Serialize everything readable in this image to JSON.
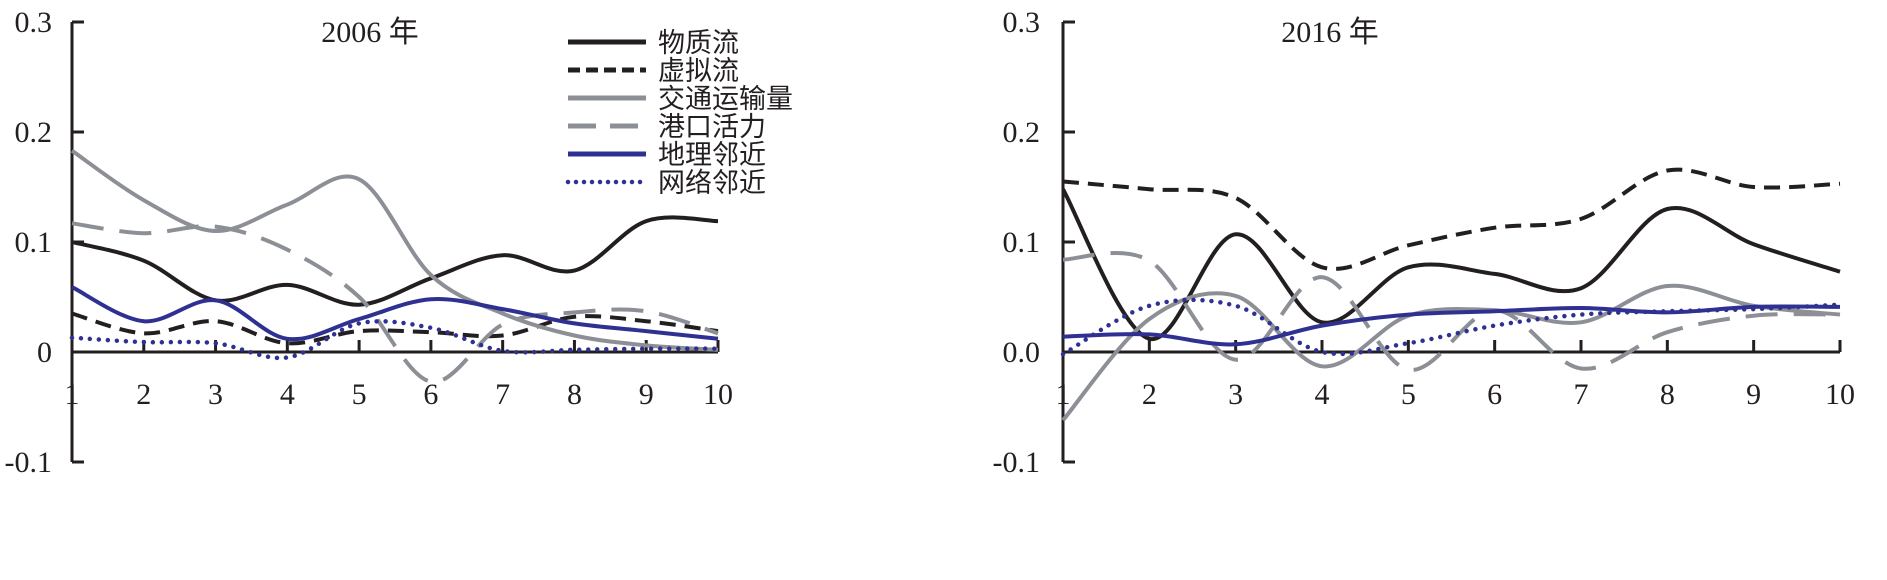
{
  "chart_data": [
    {
      "type": "line",
      "title": "2006 年",
      "x": [
        1,
        2,
        3,
        4,
        5,
        6,
        7,
        8,
        9,
        10
      ],
      "ylim": [
        -0.1,
        0.3
      ],
      "yticks": [
        "0.3",
        "0.2",
        "0.1",
        "0",
        "-0.1"
      ],
      "ytick_values": [
        0.3,
        0.2,
        0.1,
        0,
        -0.1
      ],
      "xticks": [
        "1",
        "2",
        "3",
        "4",
        "5",
        "6",
        "7",
        "8",
        "9",
        "10"
      ],
      "legend_position": "top-right",
      "series": [
        {
          "name": "物质流",
          "style": "solid",
          "color": "#231f20",
          "values": [
            0.1,
            0.083,
            0.047,
            0.061,
            0.043,
            0.067,
            0.088,
            0.074,
            0.119,
            0.119
          ]
        },
        {
          "name": "虚拟流",
          "style": "dashed",
          "color": "#231f20",
          "values": [
            0.035,
            0.017,
            0.028,
            0.008,
            0.019,
            0.018,
            0.015,
            0.032,
            0.028,
            0.019
          ]
        },
        {
          "name": "交通运输量",
          "style": "solid",
          "color": "#8c9096",
          "values": [
            0.183,
            0.138,
            0.11,
            0.134,
            0.157,
            0.07,
            0.035,
            0.015,
            0.006,
            0.002
          ]
        },
        {
          "name": "港口活力",
          "style": "longdash",
          "color": "#8c9096",
          "values": [
            0.117,
            0.108,
            0.114,
            0.093,
            0.05,
            -0.027,
            0.025,
            0.036,
            0.037,
            0.017
          ]
        },
        {
          "name": "地理邻近",
          "style": "solid",
          "color": "#2e3192",
          "values": [
            0.059,
            0.028,
            0.047,
            0.012,
            0.03,
            0.048,
            0.039,
            0.026,
            0.019,
            0.012
          ]
        },
        {
          "name": "网络邻近",
          "style": "dotted",
          "color": "#2e3192",
          "values": [
            0.013,
            0.009,
            0.008,
            -0.005,
            0.026,
            0.022,
            0.001,
            0.002,
            0.003,
            0.003
          ]
        }
      ]
    },
    {
      "type": "line",
      "title": "2016 年",
      "x": [
        1,
        2,
        3,
        4,
        5,
        6,
        7,
        8,
        9,
        10
      ],
      "ylim": [
        -0.1,
        0.3
      ],
      "yticks": [
        "0.3",
        "0.2",
        "0.1",
        "0.0",
        "-0.1"
      ],
      "ytick_values": [
        0.3,
        0.2,
        0.1,
        0,
        -0.1
      ],
      "xticks": [
        "1",
        "2",
        "3",
        "4",
        "5",
        "6",
        "7",
        "8",
        "9",
        "10"
      ],
      "series": [
        {
          "name": "物质流",
          "style": "solid",
          "color": "#231f20",
          "values": [
            0.148,
            0.012,
            0.107,
            0.027,
            0.077,
            0.071,
            0.058,
            0.13,
            0.098,
            0.073
          ]
        },
        {
          "name": "虚拟流",
          "style": "dashed",
          "color": "#231f20",
          "values": [
            0.155,
            0.148,
            0.14,
            0.077,
            0.097,
            0.113,
            0.121,
            0.165,
            0.15,
            0.153
          ]
        },
        {
          "name": "交通运输量",
          "style": "solid",
          "color": "#8c9096",
          "values": [
            -0.062,
            0.03,
            0.051,
            -0.013,
            0.033,
            0.038,
            0.027,
            0.06,
            0.042,
            0.034
          ]
        },
        {
          "name": "港口活力",
          "style": "longdash",
          "color": "#8c9096",
          "values": [
            0.084,
            0.083,
            -0.007,
            0.068,
            -0.016,
            0.038,
            -0.015,
            0.018,
            0.033,
            0.034
          ]
        },
        {
          "name": "地理邻近",
          "style": "solid",
          "color": "#2e3192",
          "values": [
            0.014,
            0.016,
            0.007,
            0.024,
            0.034,
            0.037,
            0.04,
            0.036,
            0.041,
            0.041
          ]
        },
        {
          "name": "网络邻近",
          "style": "dotted",
          "color": "#2e3192",
          "values": [
            -0.002,
            0.042,
            0.042,
            0.0,
            0.008,
            0.024,
            0.034,
            0.037,
            0.039,
            0.043
          ]
        }
      ]
    }
  ]
}
